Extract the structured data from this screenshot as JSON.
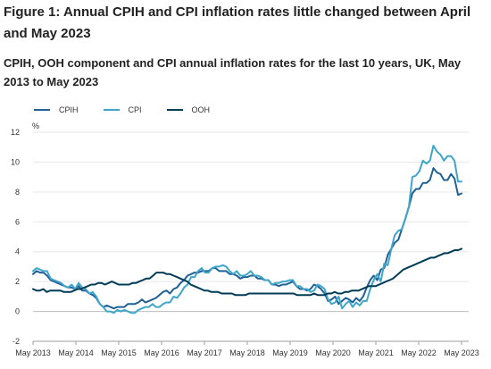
{
  "title": "Figure 1: Annual CPIH and CPI inflation rates little changed between April and May 2023",
  "subtitle": "CPIH, OOH component and CPI annual inflation rates for the last 10 years, UK, May 2013 to May 2023",
  "chart_data": {
    "type": "line",
    "ylabel": "%",
    "xlabel": "",
    "ylim": [
      -2,
      12
    ],
    "yticks": [
      -2,
      0,
      2,
      4,
      6,
      8,
      10,
      12
    ],
    "x_start": "May 2013",
    "x_end": "May 2023",
    "xticks": [
      "May 2013",
      "May 2014",
      "May 2015",
      "May 2016",
      "May 2017",
      "May 2018",
      "May 2019",
      "May 2020",
      "May 2021",
      "May 2022",
      "May 2023"
    ],
    "grid": true,
    "legend_position": "top-left",
    "series": [
      {
        "name": "CPIH",
        "color": "#206095",
        "values": [
          2.5,
          2.7,
          2.6,
          2.6,
          2.4,
          2.1,
          2.0,
          1.9,
          1.8,
          1.7,
          1.6,
          1.6,
          1.5,
          1.7,
          1.4,
          1.4,
          1.2,
          1.1,
          0.9,
          0.5,
          0.3,
          0.4,
          0.3,
          0.2,
          0.3,
          0.3,
          0.3,
          0.5,
          0.5,
          0.5,
          0.6,
          0.8,
          0.6,
          0.7,
          0.8,
          0.9,
          1.1,
          1.3,
          1.4,
          1.2,
          1.5,
          1.6,
          1.9,
          2.1,
          2.4,
          2.5,
          2.6,
          2.6,
          2.7,
          2.7,
          2.7,
          2.9,
          2.9,
          2.7,
          2.7,
          2.7,
          2.5,
          2.5,
          2.4,
          2.2,
          2.3,
          2.3,
          2.4,
          2.4,
          2.2,
          2.2,
          2.1,
          2.1,
          1.8,
          1.8,
          1.7,
          1.8,
          1.8,
          1.9,
          2.0,
          1.7,
          1.5,
          1.5,
          1.4,
          1.5,
          1.8,
          1.7,
          1.5,
          1.2,
          0.7,
          0.8,
          1.0,
          0.5,
          0.7,
          0.9,
          0.8,
          0.6,
          0.9,
          0.7,
          1.0,
          1.6,
          2.1,
          2.4,
          2.1,
          2.8,
          2.9,
          3.8,
          4.2,
          4.6,
          4.8,
          5.5,
          6.2,
          7.0,
          7.9,
          8.2,
          8.2,
          8.6,
          8.6,
          8.8,
          9.6,
          9.3,
          9.2,
          8.8,
          8.8,
          9.2,
          8.9,
          7.8,
          7.9
        ]
      },
      {
        "name": "CPI",
        "color": "#3fa6c9",
        "values": [
          2.7,
          2.9,
          2.8,
          2.7,
          2.7,
          2.2,
          2.1,
          2.0,
          1.9,
          1.7,
          1.6,
          1.8,
          1.5,
          1.9,
          1.6,
          1.5,
          1.2,
          1.3,
          1.0,
          0.5,
          0.3,
          0.0,
          0.0,
          -0.1,
          0.1,
          0.0,
          0.1,
          0.0,
          -0.1,
          -0.1,
          0.1,
          0.2,
          0.3,
          0.3,
          0.5,
          0.3,
          0.3,
          0.5,
          0.6,
          0.6,
          1.0,
          0.9,
          1.2,
          1.6,
          1.8,
          2.3,
          2.3,
          2.7,
          2.9,
          2.6,
          2.6,
          2.9,
          3.0,
          3.0,
          3.1,
          3.0,
          2.7,
          2.5,
          2.7,
          2.4,
          2.4,
          2.5,
          2.7,
          2.4,
          2.4,
          2.3,
          2.1,
          2.1,
          1.8,
          1.9,
          1.9,
          2.0,
          2.0,
          2.1,
          2.1,
          1.7,
          1.7,
          1.5,
          1.5,
          1.3,
          1.4,
          1.8,
          1.7,
          1.5,
          0.8,
          0.5,
          0.6,
          1.0,
          0.2,
          0.5,
          0.7,
          0.3,
          0.6,
          0.4,
          0.7,
          0.7,
          1.5,
          2.1,
          2.5,
          2.0,
          3.2,
          3.1,
          4.2,
          5.1,
          5.4,
          5.5,
          6.2,
          7.0,
          9.0,
          9.1,
          9.4,
          10.1,
          9.9,
          10.1,
          11.1,
          10.7,
          10.5,
          10.1,
          10.4,
          10.4,
          10.1,
          8.7,
          8.7
        ]
      },
      {
        "name": "OOH",
        "color": "#003c57",
        "values": [
          1.5,
          1.4,
          1.4,
          1.5,
          1.3,
          1.4,
          1.4,
          1.4,
          1.4,
          1.3,
          1.3,
          1.3,
          1.4,
          1.5,
          1.5,
          1.6,
          1.7,
          1.8,
          1.8,
          1.9,
          1.9,
          1.8,
          1.9,
          2.0,
          1.9,
          1.8,
          1.8,
          1.8,
          1.8,
          1.9,
          1.9,
          2.0,
          2.1,
          2.2,
          2.2,
          2.4,
          2.6,
          2.6,
          2.6,
          2.5,
          2.5,
          2.4,
          2.3,
          2.2,
          2.1,
          2.0,
          1.8,
          1.7,
          1.6,
          1.5,
          1.4,
          1.4,
          1.3,
          1.3,
          1.3,
          1.2,
          1.2,
          1.2,
          1.2,
          1.1,
          1.1,
          1.1,
          1.1,
          1.2,
          1.2,
          1.2,
          1.2,
          1.2,
          1.2,
          1.2,
          1.2,
          1.2,
          1.2,
          1.2,
          1.2,
          1.2,
          1.2,
          1.1,
          1.1,
          1.1,
          1.1,
          1.1,
          1.2,
          1.1,
          1.1,
          1.1,
          1.2,
          1.2,
          1.3,
          1.2,
          1.2,
          1.3,
          1.3,
          1.4,
          1.4,
          1.4,
          1.5,
          1.6,
          1.7,
          1.7,
          1.7,
          1.8,
          1.9,
          2.0,
          2.1,
          2.2,
          2.4,
          2.6,
          2.8,
          2.9,
          3.0,
          3.1,
          3.2,
          3.3,
          3.4,
          3.5,
          3.6,
          3.6,
          3.7,
          3.8,
          3.9,
          3.9,
          4.0,
          4.1,
          4.1,
          4.2
        ]
      }
    ]
  }
}
